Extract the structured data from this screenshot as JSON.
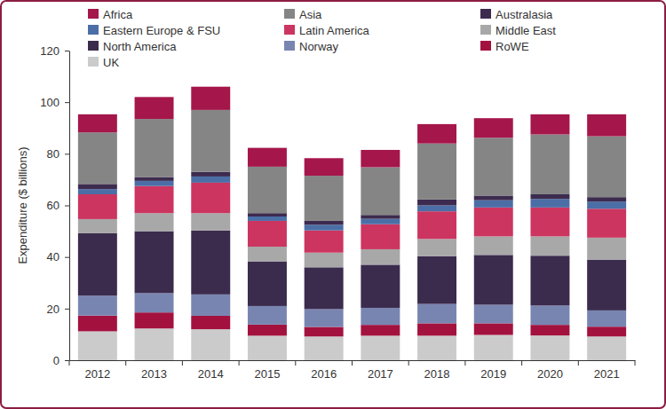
{
  "chart_data": {
    "type": "bar",
    "stacked": true,
    "grid": false,
    "legend": "top",
    "y_label": "Expenditure ($ billions)",
    "categories": [
      "2012",
      "2013",
      "2014",
      "2015",
      "2016",
      "2017",
      "2018",
      "2019",
      "2020",
      "2021"
    ],
    "ylim": [
      0,
      120
    ],
    "yticks": [
      0,
      20,
      40,
      60,
      80,
      100,
      120
    ],
    "series": [
      {
        "name": "Africa",
        "color": "#a5164b",
        "values": [
          7.0,
          8.5,
          9.0,
          7.3,
          6.8,
          6.7,
          7.5,
          7.6,
          7.8,
          8.5
        ]
      },
      {
        "name": "Asia",
        "color": "#858585",
        "values": [
          20.0,
          22.5,
          24.0,
          18.0,
          17.5,
          18.5,
          21.7,
          22.4,
          23.2,
          23.6
        ]
      },
      {
        "name": "Australasia",
        "color": "#3d2b4f",
        "values": [
          2.0,
          1.5,
          1.8,
          1.3,
          1.5,
          1.5,
          2.3,
          1.8,
          1.8,
          1.7
        ]
      },
      {
        "name": "Eastern Europe & FSU",
        "color": "#4b6ea6",
        "values": [
          2.0,
          2.0,
          2.4,
          1.7,
          2.2,
          2.1,
          2.3,
          2.8,
          3.3,
          2.8
        ]
      },
      {
        "name": "Latin America",
        "color": "#cc3560",
        "values": [
          9.6,
          10.5,
          11.8,
          10.0,
          8.6,
          9.7,
          10.7,
          11.2,
          11.2,
          11.2
        ]
      },
      {
        "name": "Middle East",
        "color": "#a8a8a8",
        "values": [
          5.5,
          7.0,
          6.7,
          5.7,
          5.7,
          6.0,
          6.7,
          7.2,
          7.5,
          8.5
        ]
      },
      {
        "name": "North America",
        "color": "#3b2b4d",
        "values": [
          24.2,
          24.0,
          24.8,
          17.3,
          16.2,
          16.7,
          18.5,
          19.3,
          19.3,
          19.7
        ]
      },
      {
        "name": "Norway",
        "color": "#7985b1",
        "values": [
          7.7,
          7.5,
          8.3,
          7.2,
          6.9,
          6.6,
          7.5,
          7.2,
          7.5,
          6.3
        ]
      },
      {
        "name": "RoWE",
        "color": "#a3123f",
        "values": [
          6.1,
          6.2,
          5.2,
          4.3,
          3.7,
          4.2,
          4.8,
          4.5,
          4.1,
          3.8
        ]
      },
      {
        "name": "UK",
        "color": "#cbcbcb",
        "values": [
          11.2,
          12.3,
          12.0,
          9.5,
          9.2,
          9.5,
          9.5,
          9.8,
          9.6,
          9.2
        ]
      }
    ]
  }
}
